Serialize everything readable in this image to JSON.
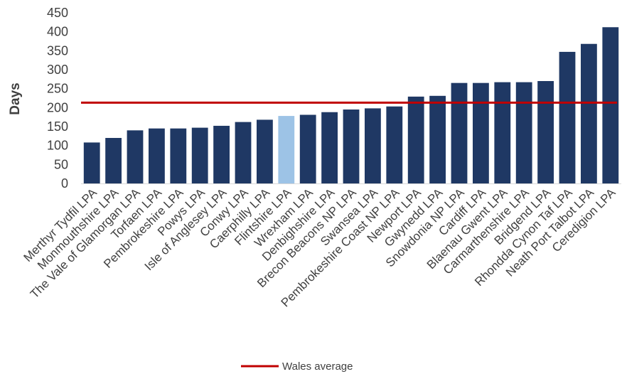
{
  "chart_data": {
    "type": "bar",
    "ylabel": "Days",
    "xlabel": "",
    "ylim": [
      0,
      450
    ],
    "yticks": [
      0,
      50,
      100,
      150,
      200,
      250,
      300,
      350,
      400,
      450
    ],
    "grid": false,
    "categories": [
      "Merthyr Tydfil LPA",
      "Monmouthshire LPA",
      "The Vale of Glamorgan LPA",
      "Torfaen LPA",
      "Pembrokeshire LPA",
      "Powys LPA",
      "Isle of Anglesey LPA",
      "Conwy LPA",
      "Caerphilly LPA",
      "Flintshire LPA",
      "Wrexham LPA",
      "Denbighshire LPA",
      "Brecon Beacons NP LPA",
      "Swansea LPA",
      "Pembrokeshire Coast NP LPA",
      "Newport LPA",
      "Gwynedd LPA",
      "Snowdonia NP LPA",
      "Cardiff LPA",
      "Blaenau Gwent LPA",
      "Carmarthenshire LPA",
      "Bridgend LPA",
      "Rhondda Cynon Taf LPA",
      "Neath Port Talbot LPA",
      "Ceredigion LPA"
    ],
    "values": [
      108,
      120,
      140,
      145,
      145,
      147,
      152,
      162,
      168,
      178,
      181,
      188,
      195,
      198,
      203,
      229,
      231,
      265,
      265,
      267,
      267,
      270,
      347,
      368,
      412
    ],
    "highlight_category": "Flintshire LPA",
    "reference_line": {
      "name": "Wales average",
      "value": 213
    },
    "legend": {
      "position": "bottom",
      "entries": [
        "Wales average"
      ]
    },
    "colors": {
      "bar": "#1f3864",
      "highlight_bar": "#9dc3e6",
      "average_line": "#c00000",
      "axis": "#d9d9d9",
      "text": "#404040"
    }
  }
}
